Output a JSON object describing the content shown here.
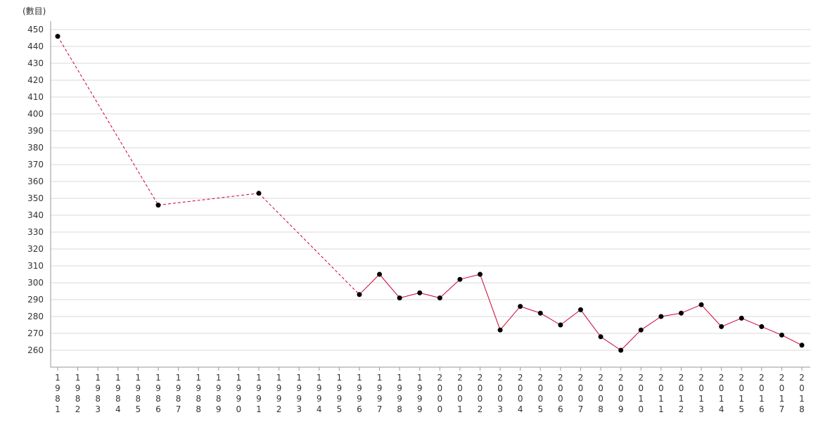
{
  "chart_data": {
    "type": "line",
    "ylabel": "(數目)",
    "ylim": [
      250,
      450
    ],
    "y_ticks": [
      260,
      270,
      280,
      290,
      300,
      310,
      320,
      330,
      340,
      350,
      360,
      370,
      380,
      390,
      400,
      410,
      420,
      430,
      440,
      450
    ],
    "x": [
      "1981",
      "1982",
      "1983",
      "1984",
      "1985",
      "1986",
      "1987",
      "1988",
      "1989",
      "1990",
      "1991",
      "1992",
      "1993",
      "1994",
      "1995",
      "1996",
      "1997",
      "1998",
      "1999",
      "2000",
      "2001",
      "2002",
      "2003",
      "2004",
      "2005",
      "2006",
      "2007",
      "2008",
      "2009",
      "2010",
      "2011",
      "2012",
      "2013",
      "2014",
      "2015",
      "2016",
      "2017",
      "2018"
    ],
    "points": [
      {
        "x": "1981",
        "y": 446
      },
      {
        "x": "1986",
        "y": 346
      },
      {
        "x": "1991",
        "y": 353
      },
      {
        "x": "1996",
        "y": 293
      },
      {
        "x": "1997",
        "y": 305
      },
      {
        "x": "1998",
        "y": 291
      },
      {
        "x": "1999",
        "y": 294
      },
      {
        "x": "2000",
        "y": 291
      },
      {
        "x": "2001",
        "y": 302
      },
      {
        "x": "2002",
        "y": 305
      },
      {
        "x": "2003",
        "y": 272
      },
      {
        "x": "2004",
        "y": 286
      },
      {
        "x": "2005",
        "y": 282
      },
      {
        "x": "2006",
        "y": 275
      },
      {
        "x": "2007",
        "y": 284
      },
      {
        "x": "2008",
        "y": 268
      },
      {
        "x": "2009",
        "y": 260
      },
      {
        "x": "2010",
        "y": 272
      },
      {
        "x": "2011",
        "y": 280
      },
      {
        "x": "2012",
        "y": 282
      },
      {
        "x": "2013",
        "y": 287
      },
      {
        "x": "2014",
        "y": 274
      },
      {
        "x": "2015",
        "y": 279
      },
      {
        "x": "2016",
        "y": 274
      },
      {
        "x": "2017",
        "y": 269
      },
      {
        "x": "2018",
        "y": 263
      }
    ],
    "grid": true,
    "legend": "none",
    "colors": {
      "line": "#cc0033",
      "marker": "#000000",
      "grid": "#d9d9d9",
      "axis": "#999999"
    }
  }
}
